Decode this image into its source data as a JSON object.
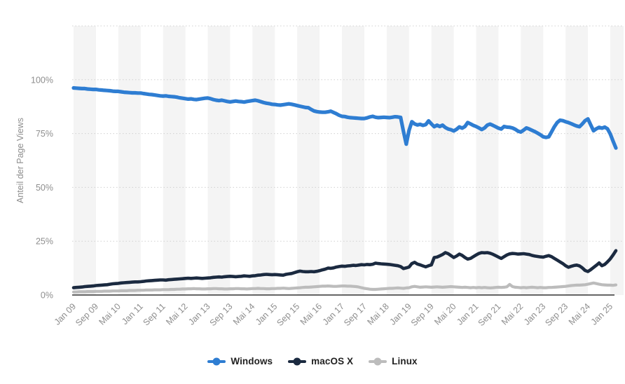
{
  "chart": {
    "y_axis": {
      "title": "Anteil der Page Views",
      "ticks": [
        {
          "label": "0%",
          "value": 0
        },
        {
          "label": "25%",
          "value": 25
        },
        {
          "label": "50%",
          "value": 50
        },
        {
          "label": "75%",
          "value": 75
        },
        {
          "label": "100%",
          "value": 100
        }
      ]
    },
    "x_axis": {
      "labels": [
        "Jan 09",
        "Sep 09",
        "Mai 10",
        "Jan 11",
        "Sep 11",
        "Mai 12",
        "Jan 13",
        "Sep 13",
        "Mai 14",
        "Jan 15",
        "Sep 15",
        "Mai 16",
        "Jan 17",
        "Sep 17",
        "Mai 18",
        "Jan 19",
        "Sep 19",
        "Mai 20",
        "Jan 21",
        "Sep 21",
        "Mai 22",
        "Jan 23",
        "Sep 23",
        "Mai 24",
        "Jan 25"
      ]
    },
    "colors": {
      "stripe": "#f4f4f4",
      "gridline": "#d0d0d0",
      "axis_line": "#333333",
      "tick_text": "#8e8e8e",
      "legend_text": "#222222"
    }
  },
  "chart_data": {
    "type": "line",
    "title": "",
    "ylabel": "Anteil der Page Views",
    "ylim": [
      0,
      125
    ],
    "grid": "horizontal dotted every 25%, alternating vertical background stripes every 8 months",
    "legend_position": "bottom center",
    "x_unit": "monthly",
    "x_start": "Jan 2009",
    "x_end": "Mär 2025",
    "tick_labels": [
      "Jan 09",
      "Sep 09",
      "Mai 10",
      "Jan 11",
      "Sep 11",
      "Mai 12",
      "Jan 13",
      "Sep 13",
      "Mai 14",
      "Jan 15",
      "Sep 15",
      "Mai 16",
      "Jan 17",
      "Sep 17",
      "Mai 18",
      "Jan 19",
      "Sep 19",
      "Mai 20",
      "Jan 21",
      "Sep 21",
      "Mai 22",
      "Jan 23",
      "Sep 23",
      "Mai 24",
      "Jan 25"
    ],
    "series": [
      {
        "name": "Windows",
        "color": "#2e7dd2",
        "stroke_width": 5.2,
        "values": [
          96.2,
          96.1,
          96.0,
          95.9,
          95.9,
          95.7,
          95.6,
          95.5,
          95.5,
          95.3,
          95.2,
          95.1,
          95.0,
          94.9,
          94.7,
          94.6,
          94.6,
          94.4,
          94.2,
          94.1,
          94.0,
          93.9,
          93.9,
          93.8,
          93.8,
          93.6,
          93.4,
          93.2,
          93.1,
          92.9,
          92.7,
          92.5,
          92.4,
          92.5,
          92.3,
          92.2,
          92.1,
          91.9,
          91.6,
          91.4,
          91.2,
          91.0,
          91.1,
          90.9,
          90.8,
          91.0,
          91.2,
          91.4,
          91.5,
          91.2,
          90.8,
          90.5,
          90.3,
          90.5,
          90.2,
          89.9,
          89.7,
          89.9,
          90.1,
          89.9,
          89.8,
          89.6,
          89.9,
          90.1,
          90.3,
          90.5,
          90.2,
          89.8,
          89.4,
          89.1,
          88.9,
          88.6,
          88.5,
          88.3,
          88.2,
          88.4,
          88.6,
          88.8,
          88.6,
          88.3,
          88.0,
          87.7,
          87.4,
          87.1,
          87.0,
          86.2,
          85.5,
          85.2,
          85.0,
          84.9,
          84.9,
          85.1,
          85.4,
          84.8,
          84.2,
          83.5,
          83.0,
          82.9,
          82.6,
          82.4,
          82.3,
          82.2,
          82.1,
          82.0,
          82.0,
          82.3,
          82.7,
          83.0,
          82.6,
          82.4,
          82.5,
          82.6,
          82.5,
          82.4,
          82.6,
          82.8,
          82.7,
          82.5,
          76.0,
          70.1,
          76.5,
          80.5,
          79.5,
          79.0,
          79.3,
          78.8,
          79.2,
          80.9,
          79.5,
          78.2,
          78.9,
          78.3,
          78.9,
          77.8,
          77.1,
          76.8,
          76.2,
          77.0,
          78.1,
          77.5,
          78.3,
          80.1,
          79.5,
          78.8,
          78.3,
          77.6,
          76.9,
          77.6,
          78.9,
          79.4,
          78.8,
          78.2,
          77.5,
          77.1,
          78.3,
          78.0,
          77.9,
          77.6,
          77.0,
          76.1,
          75.7,
          76.6,
          77.6,
          77.1,
          76.5,
          75.9,
          75.2,
          74.4,
          73.5,
          73.2,
          73.5,
          75.8,
          78.2,
          80.1,
          81.2,
          81.0,
          80.5,
          80.1,
          79.6,
          79.0,
          78.5,
          78.2,
          79.5,
          81.0,
          81.8,
          79.0,
          76.3,
          77.2,
          77.9,
          77.5,
          78.0,
          77.2,
          74.8,
          71.5,
          68.3
        ]
      },
      {
        "name": "macOS X",
        "color": "#1b2a40",
        "stroke_width": 4.6,
        "values": [
          3.4,
          3.5,
          3.6,
          3.7,
          3.9,
          4.0,
          4.1,
          4.2,
          4.4,
          4.5,
          4.6,
          4.7,
          4.8,
          5.0,
          5.2,
          5.3,
          5.4,
          5.6,
          5.7,
          5.8,
          5.9,
          6.0,
          6.1,
          6.1,
          6.2,
          6.3,
          6.5,
          6.6,
          6.7,
          6.8,
          6.9,
          7.0,
          7.0,
          6.9,
          7.1,
          7.2,
          7.3,
          7.4,
          7.5,
          7.6,
          7.7,
          7.8,
          7.7,
          7.8,
          7.9,
          7.8,
          7.7,
          7.8,
          7.9,
          8.0,
          8.2,
          8.3,
          8.4,
          8.3,
          8.5,
          8.6,
          8.7,
          8.6,
          8.5,
          8.6,
          8.7,
          8.9,
          8.8,
          8.7,
          8.9,
          9.0,
          9.2,
          9.3,
          9.5,
          9.6,
          9.5,
          9.4,
          9.5,
          9.4,
          9.3,
          9.2,
          9.6,
          9.8,
          10.0,
          10.4,
          10.8,
          11.1,
          10.9,
          10.8,
          10.8,
          10.9,
          10.8,
          11.0,
          11.3,
          11.7,
          12.0,
          12.5,
          12.4,
          12.6,
          13.0,
          13.2,
          13.4,
          13.3,
          13.5,
          13.6,
          13.8,
          13.7,
          13.9,
          14.1,
          14.0,
          14.2,
          14.1,
          14.3,
          14.8,
          14.6,
          14.5,
          14.4,
          14.3,
          14.2,
          14.0,
          13.8,
          13.6,
          13.2,
          12.3,
          12.6,
          13.0,
          14.6,
          15.2,
          14.4,
          14.0,
          13.5,
          13.1,
          13.6,
          14.0,
          17.4,
          17.6,
          18.2,
          18.8,
          19.7,
          19.2,
          18.3,
          17.4,
          18.1,
          19.0,
          18.4,
          17.4,
          16.7,
          17.0,
          17.8,
          18.6,
          19.3,
          19.7,
          19.6,
          19.7,
          19.4,
          18.9,
          18.3,
          17.6,
          17.0,
          17.8,
          18.6,
          19.1,
          19.3,
          19.2,
          19.0,
          19.1,
          19.2,
          19.0,
          18.8,
          18.4,
          18.1,
          17.9,
          17.7,
          17.6,
          18.0,
          18.3,
          17.8,
          17.0,
          16.2,
          15.4,
          14.6,
          13.6,
          12.9,
          13.3,
          13.7,
          13.9,
          13.5,
          12.6,
          11.4,
          10.9,
          11.8,
          12.8,
          13.8,
          14.9,
          13.6,
          14.2,
          15.4,
          16.8,
          18.6,
          20.6
        ]
      },
      {
        "name": "Linux",
        "color": "#bcbcbc",
        "stroke_width": 4.2,
        "values": [
          1.4,
          1.4,
          1.5,
          1.5,
          1.5,
          1.6,
          1.6,
          1.6,
          1.7,
          1.7,
          1.7,
          1.8,
          1.8,
          1.8,
          1.9,
          1.9,
          1.9,
          2.0,
          2.0,
          2.0,
          2.1,
          2.1,
          2.1,
          2.2,
          2.2,
          2.2,
          2.3,
          2.3,
          2.3,
          2.4,
          2.4,
          2.4,
          2.5,
          2.5,
          2.5,
          2.6,
          2.6,
          2.7,
          2.7,
          2.8,
          2.8,
          2.9,
          2.9,
          3.0,
          2.9,
          2.9,
          2.8,
          2.8,
          2.9,
          2.9,
          3.0,
          3.0,
          2.9,
          2.9,
          2.8,
          2.8,
          2.9,
          2.9,
          3.0,
          3.0,
          2.9,
          2.9,
          2.8,
          2.9,
          3.0,
          3.0,
          3.1,
          3.0,
          3.0,
          2.9,
          2.9,
          3.0,
          3.0,
          3.1,
          3.1,
          3.2,
          3.1,
          3.0,
          3.1,
          3.2,
          3.3,
          3.4,
          3.5,
          3.6,
          3.6,
          3.7,
          3.8,
          3.9,
          4.0,
          4.1,
          4.1,
          4.2,
          4.1,
          4.0,
          4.0,
          4.1,
          4.2,
          4.2,
          4.1,
          4.1,
          4.0,
          3.9,
          3.7,
          3.4,
          3.1,
          2.9,
          2.7,
          2.6,
          2.6,
          2.7,
          2.8,
          2.9,
          3.0,
          3.1,
          3.1,
          3.2,
          3.3,
          3.2,
          3.1,
          3.3,
          3.4,
          3.8,
          4.0,
          3.8,
          3.6,
          3.7,
          3.8,
          3.7,
          3.6,
          3.7,
          3.8,
          3.7,
          3.6,
          3.7,
          3.8,
          3.9,
          3.8,
          3.7,
          3.6,
          3.5,
          3.6,
          3.5,
          3.4,
          3.5,
          3.4,
          3.5,
          3.4,
          3.5,
          3.4,
          3.3,
          3.4,
          3.5,
          3.6,
          3.5,
          3.6,
          3.8,
          4.9,
          3.9,
          3.6,
          3.5,
          3.4,
          3.5,
          3.4,
          3.5,
          3.6,
          3.5,
          3.4,
          3.5,
          3.4,
          3.4,
          3.5,
          3.5,
          3.6,
          3.7,
          3.8,
          3.9,
          4.0,
          4.2,
          4.4,
          4.5,
          4.6,
          4.6,
          4.7,
          4.8,
          5.0,
          5.3,
          5.6,
          5.3,
          5.0,
          4.8,
          4.7,
          4.6,
          4.6,
          4.5,
          4.7
        ]
      }
    ]
  }
}
